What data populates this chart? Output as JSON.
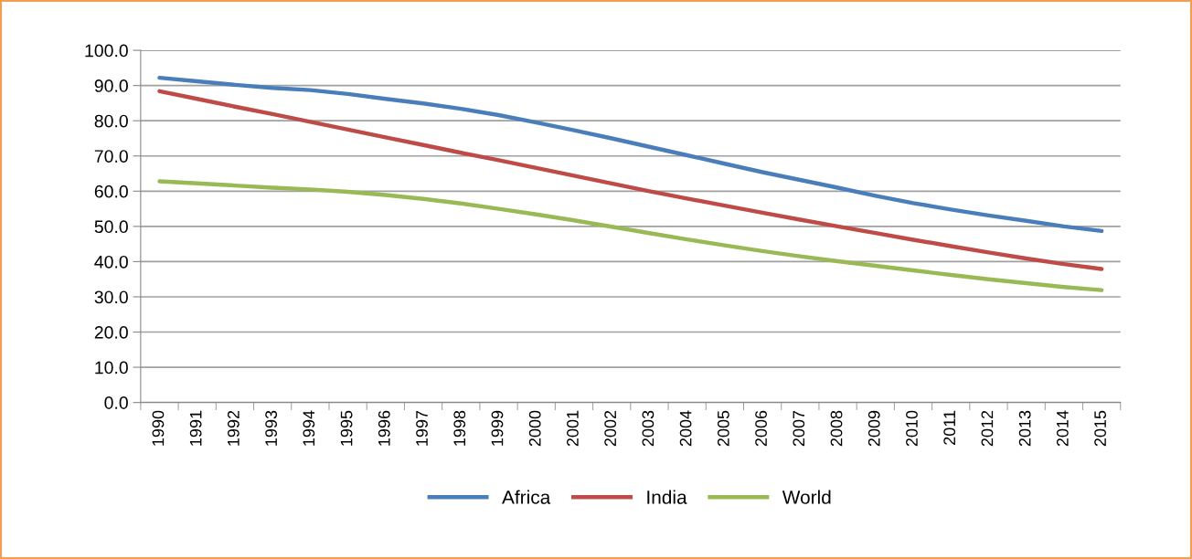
{
  "chart_data": {
    "type": "line",
    "categories": [
      "1990",
      "1991",
      "1992",
      "1993",
      "1994",
      "1995",
      "1996",
      "1997",
      "1998",
      "1999",
      "2000",
      "2001",
      "2002",
      "2003",
      "2004",
      "2005",
      "2006",
      "2007",
      "2008",
      "2009",
      "2010",
      "2011",
      "2012",
      "2013",
      "2014",
      "2015"
    ],
    "series": [
      {
        "name": "Africa",
        "color": "#4a7ebb",
        "values": [
          92.2,
          91.2,
          90.2,
          89.3,
          88.7,
          87.6,
          86.2,
          84.9,
          83.4,
          81.6,
          79.5,
          77.3,
          75.0,
          72.6,
          70.2,
          67.8,
          65.4,
          63.2,
          61.0,
          58.7,
          56.6,
          54.8,
          53.1,
          51.6,
          50.0,
          48.7
        ]
      },
      {
        "name": "India",
        "color": "#be4b48",
        "values": [
          88.4,
          86.2,
          84.0,
          81.9,
          79.7,
          77.5,
          75.3,
          73.1,
          70.9,
          68.8,
          66.6,
          64.4,
          62.2,
          60.0,
          57.9,
          55.9,
          53.9,
          51.9,
          50.0,
          48.1,
          46.2,
          44.4,
          42.6,
          40.9,
          39.3,
          37.9
        ]
      },
      {
        "name": "World",
        "color": "#98b954",
        "values": [
          62.8,
          62.2,
          61.6,
          61.0,
          60.5,
          59.8,
          58.9,
          57.8,
          56.5,
          55.0,
          53.4,
          51.7,
          49.9,
          48.1,
          46.3,
          44.6,
          43.0,
          41.5,
          40.1,
          38.8,
          37.5,
          36.2,
          35.0,
          33.9,
          32.8,
          31.9
        ]
      }
    ],
    "ylim": [
      0,
      100
    ],
    "yticks": [
      {
        "value": 0,
        "label": "0.0"
      },
      {
        "value": 10,
        "label": "10.0"
      },
      {
        "value": 20,
        "label": "20.0"
      },
      {
        "value": 30,
        "label": "30.0"
      },
      {
        "value": 40,
        "label": "40.0"
      },
      {
        "value": 50,
        "label": "50.0"
      },
      {
        "value": 60,
        "label": "60.0"
      },
      {
        "value": 70,
        "label": "70.0"
      },
      {
        "value": 80,
        "label": "80.0"
      },
      {
        "value": 90,
        "label": "90.0"
      },
      {
        "value": 100,
        "label": "100.0"
      }
    ],
    "grid": "y",
    "legend": "bottom",
    "marker": "none",
    "line_style": "solid"
  }
}
